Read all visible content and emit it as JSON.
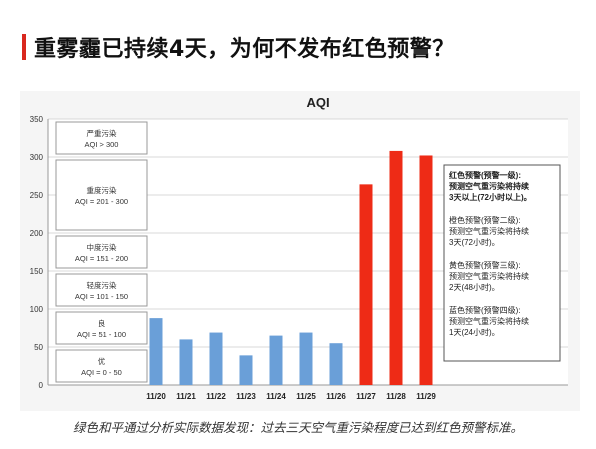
{
  "headline": "重雾霾已持续4天，为何不发布红色预警？",
  "caption": "绿色和平通过分析实际数据发现：过去三天空气重污染程度已达到红色预警标准。",
  "colors": {
    "accent": "#d9281e",
    "blue_bar": "#6a9fd8",
    "red_bar": "#ee2b16"
  },
  "chart_data": {
    "type": "bar",
    "title": "AQI",
    "categories": [
      "11/20",
      "11/21",
      "11/22",
      "11/23",
      "11/24",
      "11/25",
      "11/26",
      "11/27",
      "11/28",
      "11/29"
    ],
    "values": [
      88,
      60,
      69,
      39,
      65,
      69,
      55,
      264,
      308,
      302
    ],
    "bar_colors": [
      "blue",
      "blue",
      "blue",
      "blue",
      "blue",
      "blue",
      "blue",
      "red",
      "red",
      "red"
    ],
    "ylim": [
      0,
      350
    ],
    "yticks": [
      0,
      50,
      100,
      150,
      200,
      250,
      300,
      350
    ],
    "grid": true,
    "levels": [
      {
        "name": "严重污染",
        "range": "AQI > 300",
        "lo": 300,
        "hi": 350
      },
      {
        "name": "重度污染",
        "range": "AQI = 201 - 300",
        "lo": 200,
        "hi": 300
      },
      {
        "name": "中度污染",
        "range": "AQI = 151 - 200",
        "lo": 150,
        "hi": 200
      },
      {
        "name": "轻度污染",
        "range": "AQI = 101 - 150",
        "lo": 100,
        "hi": 150
      },
      {
        "name": "良",
        "range": "AQI = 51 - 100",
        "lo": 50,
        "hi": 100
      },
      {
        "name": "优",
        "range": "AQI = 0 - 50",
        "lo": 0,
        "hi": 50
      }
    ],
    "warning_notes": [
      {
        "lines": [
          "红色预警(预警一级):",
          "预测空气重污染将持续",
          "3天以上(72小时以上)。"
        ],
        "bold": true
      },
      {
        "lines": [
          "橙色预警(预警二级):",
          "预测空气重污染将持续",
          "3天(72小时)。"
        ],
        "bold": false
      },
      {
        "lines": [
          "黄色预警(预警三级):",
          "预测空气重污染将持续",
          "2天(48小时)。"
        ],
        "bold": false
      },
      {
        "lines": [
          "蓝色预警(预警四级):",
          "预测空气重污染将持续",
          "1天(24小时)。"
        ],
        "bold": false
      }
    ]
  }
}
